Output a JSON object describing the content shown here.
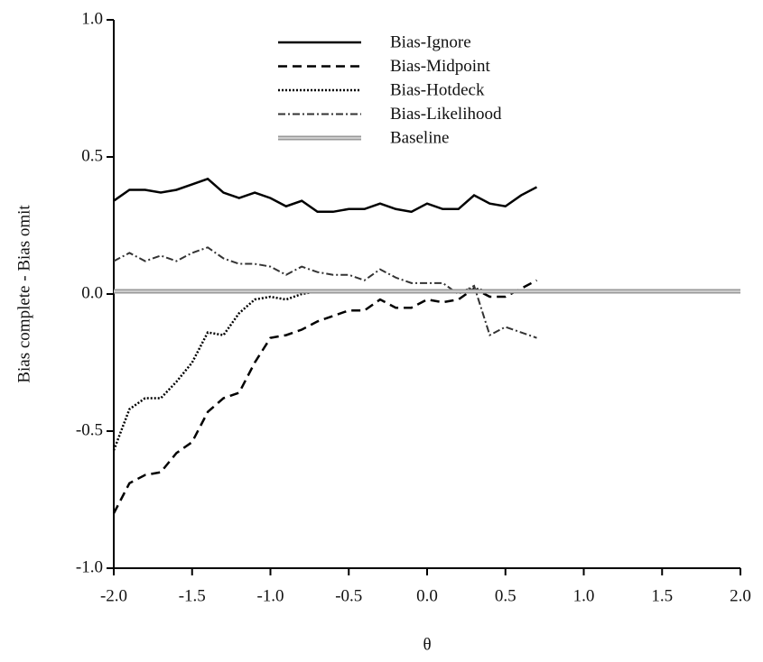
{
  "chart_data": {
    "type": "line",
    "xlabel": "θ",
    "ylabel": "Bias complete - Bias omit",
    "x": [
      -2.0,
      -1.9,
      -1.8,
      -1.7,
      -1.6,
      -1.5,
      -1.4,
      -1.3,
      -1.2,
      -1.1,
      -1.0,
      -0.9,
      -0.8,
      -0.7,
      -0.6,
      -0.5,
      -0.4,
      -0.3,
      -0.2,
      -0.1,
      0.0,
      0.1,
      0.2,
      0.3,
      0.4,
      0.5,
      0.6,
      0.7
    ],
    "series": [
      {
        "name": "Bias-Ignore",
        "color": "#000000",
        "style": "solid",
        "values": [
          0.34,
          0.38,
          0.38,
          0.37,
          0.38,
          0.4,
          0.42,
          0.37,
          0.35,
          0.37,
          0.35,
          0.32,
          0.34,
          0.3,
          0.3,
          0.31,
          0.31,
          0.33,
          0.31,
          0.3,
          0.33,
          0.31,
          0.31,
          0.36,
          0.33,
          0.32,
          0.36,
          0.39
        ]
      },
      {
        "name": "Bias-Midpoint",
        "color": "#000000",
        "style": "dashed",
        "values": [
          -0.8,
          -0.69,
          -0.66,
          -0.65,
          -0.58,
          -0.54,
          -0.43,
          -0.38,
          -0.36,
          -0.25,
          -0.16,
          -0.15,
          -0.13,
          -0.1,
          -0.08,
          -0.06,
          -0.06,
          -0.02,
          -0.05,
          -0.05,
          -0.02,
          -0.03,
          -0.02,
          0.02,
          -0.01,
          -0.01,
          0.02,
          0.05
        ]
      },
      {
        "name": "Bias-Hotdeck",
        "color": "#000000",
        "style": "dotted",
        "values": [
          -0.57,
          -0.42,
          -0.38,
          -0.38,
          -0.32,
          -0.25,
          -0.14,
          -0.15,
          -0.07,
          -0.02,
          -0.01,
          -0.02,
          0.0,
          0.01,
          0.01,
          0.01,
          0.01,
          0.01,
          0.01,
          0.01,
          0.01,
          0.01,
          0.01,
          0.02,
          0.01,
          0.01,
          0.01,
          0.01
        ]
      },
      {
        "name": "Bias-Likelihood",
        "color": "#333333",
        "style": "dashdot",
        "values": [
          0.12,
          0.15,
          0.12,
          0.14,
          0.12,
          0.15,
          0.17,
          0.13,
          0.11,
          0.11,
          0.1,
          0.07,
          0.1,
          0.08,
          0.07,
          0.07,
          0.05,
          0.09,
          0.06,
          0.04,
          0.04,
          0.04,
          0.0,
          0.03,
          -0.15,
          -0.12,
          -0.14,
          -0.16
        ]
      },
      {
        "name": "Baseline",
        "color": "#999999",
        "style": "double",
        "x": [
          -2.0,
          2.0
        ],
        "values": [
          0.01,
          0.01
        ]
      }
    ],
    "xlim": [
      -2.0,
      2.0
    ],
    "xticks": [
      {
        "value": -2,
        "label": "-2.0"
      },
      -1.5,
      {
        "value": -1,
        "label": "-1.0"
      },
      -0.5,
      {
        "value": 0,
        "label": "0.0"
      },
      0.5,
      {
        "value": 1,
        "label": "1.0"
      },
      1.5,
      {
        "value": 2,
        "label": "2.0"
      }
    ],
    "ylim": [
      -1.0,
      1.0
    ],
    "yticks": [
      {
        "value": -1,
        "label": "-1.0"
      },
      -0.5,
      {
        "value": 0,
        "label": "0.0"
      },
      0.5,
      {
        "value": 1,
        "label": "1.0"
      }
    ],
    "legend": "upper center",
    "grid": false
  }
}
